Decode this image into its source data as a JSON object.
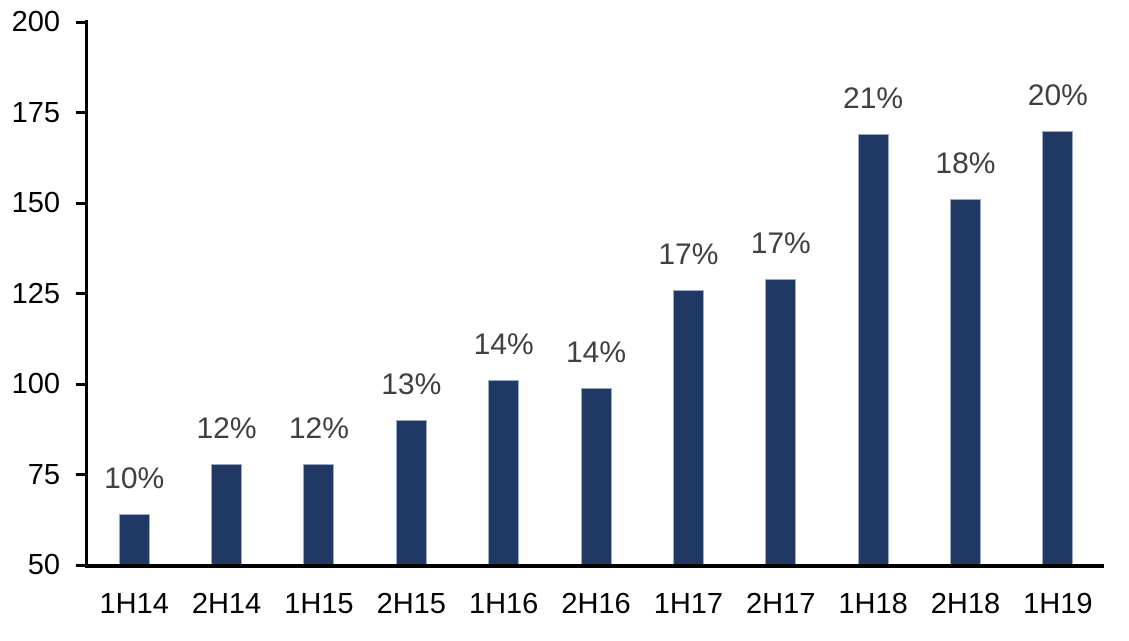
{
  "chart_data": {
    "type": "bar",
    "title": "",
    "xlabel": "",
    "ylabel": "",
    "categories": [
      "1H14",
      "2H14",
      "1H15",
      "2H15",
      "1H16",
      "2H16",
      "1H17",
      "2H17",
      "1H18",
      "2H18",
      "1H19"
    ],
    "values": [
      64,
      78,
      78,
      90,
      101,
      99,
      126,
      129,
      169,
      151,
      170
    ],
    "bar_labels": [
      "10%",
      "12%",
      "12%",
      "13%",
      "14%",
      "14%",
      "17%",
      "17%",
      "21%",
      "18%",
      "20%"
    ],
    "ylim": [
      50,
      200
    ],
    "yticks": [
      50,
      75,
      100,
      125,
      150,
      175,
      200
    ],
    "grid": false,
    "legend": null,
    "colors": {
      "bar_fill": "#1f3864",
      "bar_border": "#9aaac6",
      "bar_label_text": "#404040",
      "axis": "#000000",
      "tick_label_text": "#000000",
      "background": "#ffffff"
    }
  }
}
